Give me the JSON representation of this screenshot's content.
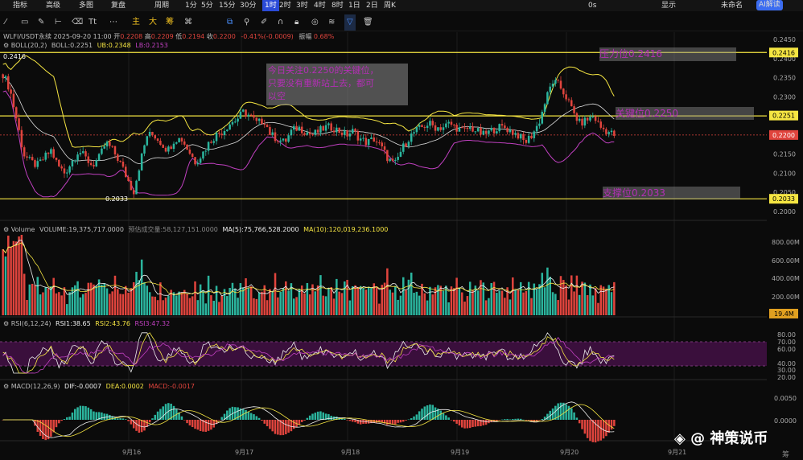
{
  "toolbar": {
    "items": [
      "指标",
      "高级",
      "多图",
      "复盘",
      "周期",
      "1分",
      "5分",
      "15分",
      "30分",
      "1时",
      "2时",
      "3时",
      "4时",
      "8时",
      "1日",
      "2日",
      "周K"
    ],
    "active_index": 9,
    "right_items": [
      "0s",
      "显示",
      "未命名"
    ],
    "ai_label": "AI解读"
  },
  "drawbar": {
    "labels": [
      "Tt",
      "主",
      "大",
      "筹"
    ]
  },
  "header": {
    "symbol_line": "WLFI/USDT永续  2025-09-20 11:00",
    "ohlc": [
      {
        "k": "开",
        "v": "0.2208"
      },
      {
        "k": "高",
        "v": "0.2209"
      },
      {
        "k": "低",
        "v": "0.2194"
      },
      {
        "k": "收",
        "v": "0.2200"
      }
    ],
    "change": "-0.41%(-0.0009)",
    "amplitude_k": "振幅",
    "amplitude_v": "0.68%",
    "boll_label": "BOLL(20,2)",
    "boll_mid": "BOLL:0.2251",
    "boll_ub": "UB:0.2348",
    "boll_lb": "LB:0.2153"
  },
  "annotations": {
    "note_lines": [
      "今日关注0.2250的关键位，",
      "只要没有重新站上去，都可",
      "以空"
    ],
    "resistance": "压力位0.2416",
    "key": "关键位0.2250",
    "support": "支撑位0.2033",
    "high_mark": "0.2416",
    "low_mark": "0.2033"
  },
  "price_axis": {
    "ticks": [
      "0.2450",
      "0.2400",
      "0.2350",
      "0.2300",
      "0.2250",
      "0.2200",
      "0.2150",
      "0.2100",
      "0.2050",
      "0.2000"
    ],
    "tags": {
      "resistance": "0.2416",
      "key": "0.2251",
      "current": "0.2200",
      "support": "0.2033"
    }
  },
  "volume": {
    "label": "Volume",
    "vol": "VOLUME:19,375,717.0000",
    "est": "预估成交量:58,127,151.0000",
    "ma5": "MA(5):75,766,528.2000",
    "ma10": "MA(10):120,019,236.1000",
    "ticks": [
      "800.00M",
      "600.00M",
      "400.00M",
      "200.00M"
    ],
    "current_tag": "19.4M"
  },
  "rsi": {
    "label": "RSI(6,12,24)",
    "rsi1": "RSI1:38.65",
    "rsi2": "RSI2:43.76",
    "rsi3": "RSI3:47.32",
    "ticks": [
      "80.00",
      "70.00",
      "60.00",
      "40.00",
      "30.00",
      "20.00"
    ]
  },
  "macd": {
    "label": "MACD(12,26,9)",
    "dif": "DIF:-0.0007",
    "dea": "DEA:0.0002",
    "macd": "MACD:-0.0017",
    "ticks": [
      "0.0050",
      "0.0000"
    ]
  },
  "time_axis": [
    "9月16",
    "9月17",
    "9月18",
    "9月19",
    "9月20",
    "9月21"
  ],
  "watermark": "@ 神策说币",
  "corner_char": "筹",
  "colors": {
    "up": "#2bb59e",
    "down": "#e0443d",
    "yellow": "#f5e542",
    "purple": "#c040c0",
    "highlight": "#b32fb5"
  },
  "chart_data": {
    "type": "candlestick",
    "price_range": [
      0.1985,
      0.2465
    ],
    "levels": {
      "resistance": 0.2416,
      "key": 0.225,
      "support": 0.2033,
      "current": 0.22
    },
    "price_path": [
      0.236,
      0.232,
      0.224,
      0.215,
      0.213,
      0.212,
      0.214,
      0.216,
      0.212,
      0.21,
      0.213,
      0.216,
      0.214,
      0.212,
      0.214,
      0.218,
      0.216,
      0.213,
      0.209,
      0.205,
      0.213,
      0.22,
      0.22,
      0.218,
      0.216,
      0.219,
      0.219,
      0.216,
      0.213,
      0.215,
      0.218,
      0.22,
      0.221,
      0.223,
      0.224,
      0.226,
      0.225,
      0.223,
      0.224,
      0.22,
      0.219,
      0.218,
      0.221,
      0.222,
      0.221,
      0.22,
      0.221,
      0.222,
      0.222,
      0.221,
      0.22,
      0.221,
      0.219,
      0.218,
      0.219,
      0.217,
      0.214,
      0.212,
      0.216,
      0.219,
      0.221,
      0.222,
      0.223,
      0.222,
      0.222,
      0.223,
      0.222,
      0.221,
      0.222,
      0.221,
      0.22,
      0.221,
      0.222,
      0.222,
      0.221,
      0.22,
      0.218,
      0.22,
      0.223,
      0.229,
      0.234,
      0.233,
      0.23,
      0.226,
      0.223,
      0.224,
      0.225,
      0.222,
      0.221,
      0.22
    ]
  }
}
